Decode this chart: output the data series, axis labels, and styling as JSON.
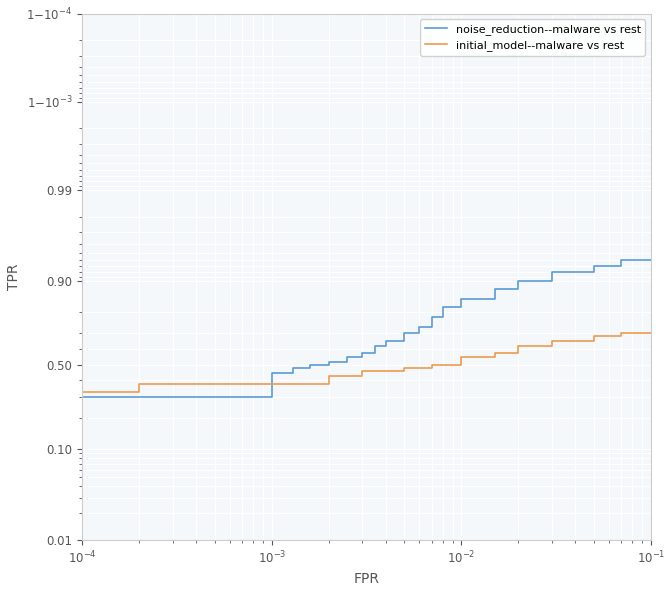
{
  "title": "",
  "xlabel": "FPR",
  "ylabel": "TPR",
  "xlim_log": [
    -4,
    -1
  ],
  "legend": [
    "noise_reduction--malware vs rest",
    "initial_model--malware vs rest"
  ],
  "line_colors": [
    "#4c8fbe",
    "#f5a623"
  ],
  "blue_line": {
    "fpr": [
      0.0001,
      0.00025,
      0.00025,
      0.0005,
      0.0005,
      0.0007,
      0.0007,
      0.001,
      0.001,
      0.0013,
      0.0013,
      0.0016,
      0.0016,
      0.002,
      0.002,
      0.0025,
      0.0025,
      0.003,
      0.003,
      0.0035,
      0.0035,
      0.004,
      0.004,
      0.005,
      0.005,
      0.006,
      0.006,
      0.007,
      0.007,
      0.008,
      0.008,
      0.01,
      0.01,
      0.015,
      0.015,
      0.02,
      0.02,
      0.03,
      0.03,
      0.05,
      0.05,
      0.07,
      0.07,
      0.1
    ],
    "tpr": [
      0.3,
      0.3,
      0.3,
      0.3,
      0.3,
      0.3,
      0.3,
      0.3,
      0.45,
      0.45,
      0.48,
      0.48,
      0.5,
      0.5,
      0.52,
      0.52,
      0.55,
      0.55,
      0.58,
      0.58,
      0.62,
      0.62,
      0.65,
      0.65,
      0.7,
      0.7,
      0.73,
      0.73,
      0.78,
      0.78,
      0.82,
      0.82,
      0.85,
      0.85,
      0.88,
      0.88,
      0.9,
      0.9,
      0.92,
      0.92,
      0.93,
      0.93,
      0.94,
      0.94
    ]
  },
  "orange_line": {
    "fpr": [
      0.0001,
      0.0002,
      0.0002,
      0.0003,
      0.0003,
      0.0005,
      0.0005,
      0.0007,
      0.0007,
      0.001,
      0.001,
      0.0015,
      0.0015,
      0.002,
      0.002,
      0.003,
      0.003,
      0.005,
      0.005,
      0.007,
      0.007,
      0.01,
      0.01,
      0.015,
      0.015,
      0.02,
      0.02,
      0.03,
      0.03,
      0.05,
      0.05,
      0.07,
      0.07,
      0.1
    ],
    "tpr": [
      0.33,
      0.33,
      0.38,
      0.38,
      0.38,
      0.38,
      0.38,
      0.38,
      0.38,
      0.38,
      0.38,
      0.38,
      0.38,
      0.38,
      0.43,
      0.43,
      0.46,
      0.46,
      0.48,
      0.48,
      0.5,
      0.5,
      0.55,
      0.55,
      0.58,
      0.58,
      0.62,
      0.62,
      0.65,
      0.65,
      0.68,
      0.68,
      0.7,
      0.7
    ]
  },
  "yticks": [
    0.01,
    0.1,
    0.5,
    0.9,
    0.99,
    0.999,
    0.9999
  ],
  "ytick_labels": [
    "0.01",
    "0.10",
    "0.50",
    "0.90",
    "0.99",
    "1−10⁻³",
    "1−10⁻⁴"
  ],
  "background_color": "#f0f4f8",
  "grid_color": "#ffffff"
}
